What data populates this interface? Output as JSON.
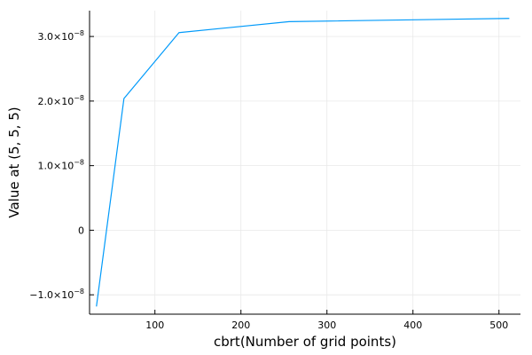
{
  "chart_data": {
    "type": "line",
    "title": "",
    "xlabel": "cbrt(Number of grid points)",
    "ylabel": "Value at (5, 5, 5)",
    "xlim": [
      24,
      525
    ],
    "ylim": [
      -1.3e-08,
      3.4e-08
    ],
    "grid": true,
    "legend": "none",
    "x_ticks": [
      {
        "value": 100,
        "label": "100"
      },
      {
        "value": 200,
        "label": "200"
      },
      {
        "value": 300,
        "label": "300"
      },
      {
        "value": 400,
        "label": "400"
      },
      {
        "value": 500,
        "label": "500"
      }
    ],
    "y_ticks": [
      {
        "value": -1e-08,
        "label": "−1.0×10",
        "exp": "−8"
      },
      {
        "value": 0,
        "label": "0",
        "exp": ""
      },
      {
        "value": 1e-08,
        "label": "1.0×10",
        "exp": "−8"
      },
      {
        "value": 2e-08,
        "label": "2.0×10",
        "exp": "−8"
      },
      {
        "value": 3e-08,
        "label": "3.0×10",
        "exp": "−8"
      }
    ],
    "series": [
      {
        "color": "#009AFA",
        "x": [
          32,
          64,
          128,
          256,
          512
        ],
        "y": [
          -1.18e-08,
          2.04e-08,
          3.06e-08,
          3.23e-08,
          3.28e-08
        ]
      }
    ],
    "colors": {
      "axis": "#000000",
      "grid": "#e8e8e8"
    }
  }
}
